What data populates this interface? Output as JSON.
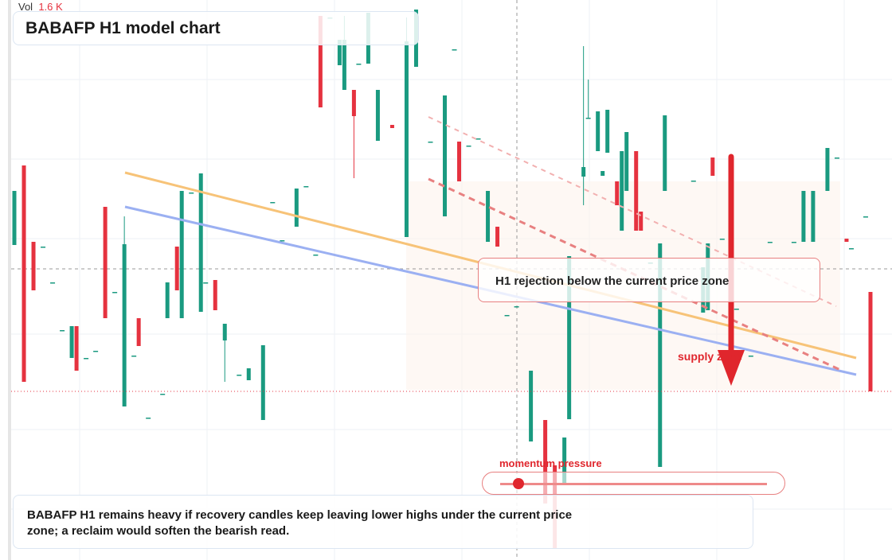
{
  "chart_data": {
    "type": "candlestick",
    "title": "BABAFP H1 model chart",
    "volume_label": "Vol",
    "volume_value": "1.6 K",
    "callout": "H1 rejection below the current price zone",
    "zone_label": "supply zone",
    "momentum_label": "momentum pressure",
    "summary": "BABAFP H1 remains heavy if recovery candles keep leaving lower highs under the current price zone; a reclaim would soften the bearish read.",
    "up_color": "#1a9a80",
    "down_color": "#e5323f",
    "xlim": [
      -3,
      183.5
    ],
    "ylim": [
      0,
      704
    ],
    "x": [
      0,
      2,
      4,
      6,
      8,
      10,
      12,
      13,
      15,
      17,
      19,
      21,
      23,
      25,
      26,
      28,
      31,
      32,
      34,
      35,
      37,
      39,
      40,
      42,
      44,
      47,
      49,
      52,
      54,
      56,
      59,
      61,
      63,
      64,
      66,
      68,
      69,
      71,
      72,
      74,
      76,
      79,
      82,
      84,
      87,
      90,
      92,
      93,
      95,
      97,
      99,
      101,
      103,
      105,
      108,
      111,
      113,
      115,
      116,
      119,
      120,
      122,
      123,
      124,
      126,
      127,
      128,
      130,
      131,
      133,
      135,
      136,
      142,
      144,
      145,
      146,
      148,
      151,
      154,
      158,
      163,
      165,
      167,
      170,
      172,
      174,
      175,
      178,
      179
    ],
    "open": [
      396,
      496,
      400,
      394,
      349,
      289,
      254,
      294,
      254,
      263,
      444,
      337,
      193,
      257,
      304,
      179,
      209,
      304,
      394,
      304,
      462,
      312,
      349,
      352,
      276,
      233,
      226,
      176,
      450,
      402,
      419,
      470,
      384,
      684,
      682,
      622,
      591,
      591,
      624,
      624,
      527,
      547,
      406,
      620,
      526,
      432,
      642,
      526,
      521,
      530,
      400,
      419,
      308,
      319,
      149,
      176,
      119,
      94,
      177,
      482,
      556,
      514,
      483,
      512,
      476,
      414,
      464,
      514,
      438,
      374,
      117,
      464,
      477,
      311,
      314,
      506,
      404,
      316,
      257,
      400,
      400,
      400,
      400,
      464,
      506,
      404,
      392,
      432,
      337
    ],
    "high": [
      464,
      496,
      400,
      394,
      349,
      289,
      294,
      294,
      254,
      263,
      444,
      337,
      432,
      257,
      304,
      179,
      209,
      349,
      394,
      464,
      462,
      486,
      349,
      352,
      297,
      233,
      241,
      270,
      450,
      402,
      467,
      470,
      384,
      684,
      682,
      654,
      684,
      591,
      624,
      688,
      591,
      547,
      682,
      692,
      526,
      584,
      642,
      526,
      521,
      530,
      464,
      419,
      308,
      319,
      238,
      176,
      119,
      154,
      382,
      646,
      604,
      564,
      489,
      566,
      476,
      514,
      538,
      514,
      438,
      374,
      398,
      559,
      477,
      368,
      398,
      506,
      404,
      316,
      257,
      400,
      400,
      464,
      464,
      518,
      506,
      404,
      392,
      432,
      337
    ],
    "low": [
      396,
      224,
      339,
      394,
      349,
      289,
      254,
      238,
      254,
      263,
      304,
      337,
      193,
      257,
      269,
      179,
      209,
      304,
      339,
      304,
      462,
      312,
      349,
      314,
      224,
      233,
      226,
      176,
      450,
      402,
      419,
      470,
      384,
      569,
      682,
      622,
      591,
      480,
      624,
      624,
      527,
      543,
      406,
      620,
      526,
      432,
      642,
      476,
      521,
      530,
      400,
      394,
      308,
      319,
      149,
      71,
      14,
      94,
      177,
      446,
      556,
      514,
      483,
      512,
      446,
      414,
      464,
      414,
      414,
      374,
      117,
      464,
      477,
      311,
      314,
      483,
      404,
      316,
      257,
      400,
      400,
      400,
      400,
      464,
      506,
      400,
      392,
      432,
      212
    ],
    "close": [
      464,
      224,
      339,
      394,
      349,
      289,
      294,
      238,
      254,
      263,
      304,
      337,
      397,
      257,
      269,
      179,
      209,
      349,
      339,
      464,
      462,
      486,
      349,
      314,
      297,
      233,
      241,
      270,
      450,
      402,
      467,
      470,
      384,
      569,
      682,
      654,
      654,
      558,
      624,
      688,
      591,
      543,
      652,
      692,
      526,
      584,
      642,
      476,
      521,
      530,
      464,
      394,
      308,
      319,
      238,
      71,
      14,
      154,
      382,
      494,
      556,
      564,
      489,
      566,
      446,
      514,
      538,
      414,
      414,
      374,
      398,
      559,
      477,
      368,
      398,
      483,
      404,
      316,
      257,
      400,
      400,
      464,
      464,
      518,
      506,
      400,
      392,
      432,
      212
    ]
  }
}
